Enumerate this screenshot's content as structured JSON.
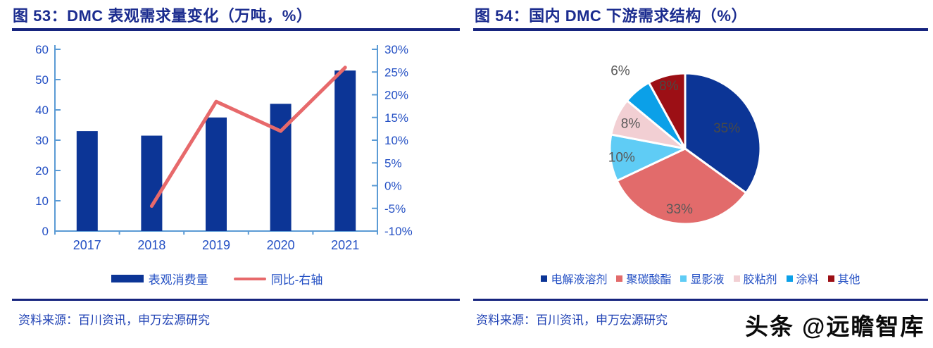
{
  "left_panel": {
    "title": "图 53：DMC 表观需求量变化（万吨，%）",
    "source": "资料来源：百川资讯，申万宏源研究"
  },
  "right_panel": {
    "title": "图 54：国内 DMC 下游需求结构（%）",
    "source": "资料来源：百川资讯，申万宏源研究"
  },
  "watermark": "头条 @远瞻智库",
  "colors": {
    "title_navy": "#1B2C8F",
    "rule_navy": "#16247E",
    "tick_blue": "#2450C4",
    "source_blue": "#2143B5",
    "axis_line": "#5B9BD5",
    "bar_navy": "#0C3596",
    "line_coral": "#E7696B",
    "pie_label_gray": "#595959",
    "background": "#FFFFFF"
  },
  "chart_data": [
    {
      "type": "bar",
      "title": "图 53：DMC 表观需求量变化（万吨，%）",
      "categories": [
        "2017",
        "2018",
        "2019",
        "2020",
        "2021"
      ],
      "series": [
        {
          "name": "表观消费量",
          "kind": "bar",
          "axis": "left",
          "color": "#0C3596",
          "values": [
            33,
            31.5,
            37.5,
            42,
            53
          ]
        },
        {
          "name": "同比-右轴",
          "kind": "line",
          "axis": "right",
          "color": "#E7696B",
          "values": [
            null,
            -4.5,
            18.5,
            12,
            26
          ]
        }
      ],
      "left_axis": {
        "min": 0,
        "max": 60,
        "step": 10,
        "ticks": [
          "0",
          "10",
          "20",
          "30",
          "40",
          "50",
          "60"
        ]
      },
      "right_axis": {
        "min": -10,
        "max": 30,
        "step": 5,
        "ticks": [
          "-10%",
          "-5%",
          "0%",
          "5%",
          "10%",
          "15%",
          "20%",
          "25%",
          "30%"
        ]
      },
      "grid": false,
      "legend_position": "bottom"
    },
    {
      "type": "pie",
      "title": "图 54：国内 DMC 下游需求结构（%）",
      "start_angle_deg": 0,
      "direction": "clockwise",
      "legend_position": "bottom",
      "slices": [
        {
          "label": "电解液溶剂",
          "value": 35,
          "color": "#0C3596",
          "label_text": "35%",
          "label_r": 0.62,
          "label_color": "#4A4A45"
        },
        {
          "label": "聚碳酸酯",
          "value": 33,
          "color": "#E26B6B",
          "label_text": "33%",
          "label_r": 0.8,
          "label_color": "#595959"
        },
        {
          "label": "显影液",
          "value": 10,
          "color": "#5FCCF5",
          "label_text": "10%",
          "label_r": 0.85,
          "label_color": "#595959"
        },
        {
          "label": "胶粘剂",
          "value": 8,
          "color": "#F2CFD3",
          "label_text": "8%",
          "label_r": 0.8,
          "label_color": "#595959"
        },
        {
          "label": "涂料",
          "value": 6,
          "color": "#0BA0E8",
          "label_text": "6%",
          "label_r": 1.35,
          "label_color": "#595959"
        },
        {
          "label": "其他",
          "value": 8,
          "color": "#9C0F15",
          "label_text": "8%",
          "label_r": 0.87,
          "label_color": "#4A4A45"
        }
      ]
    }
  ]
}
